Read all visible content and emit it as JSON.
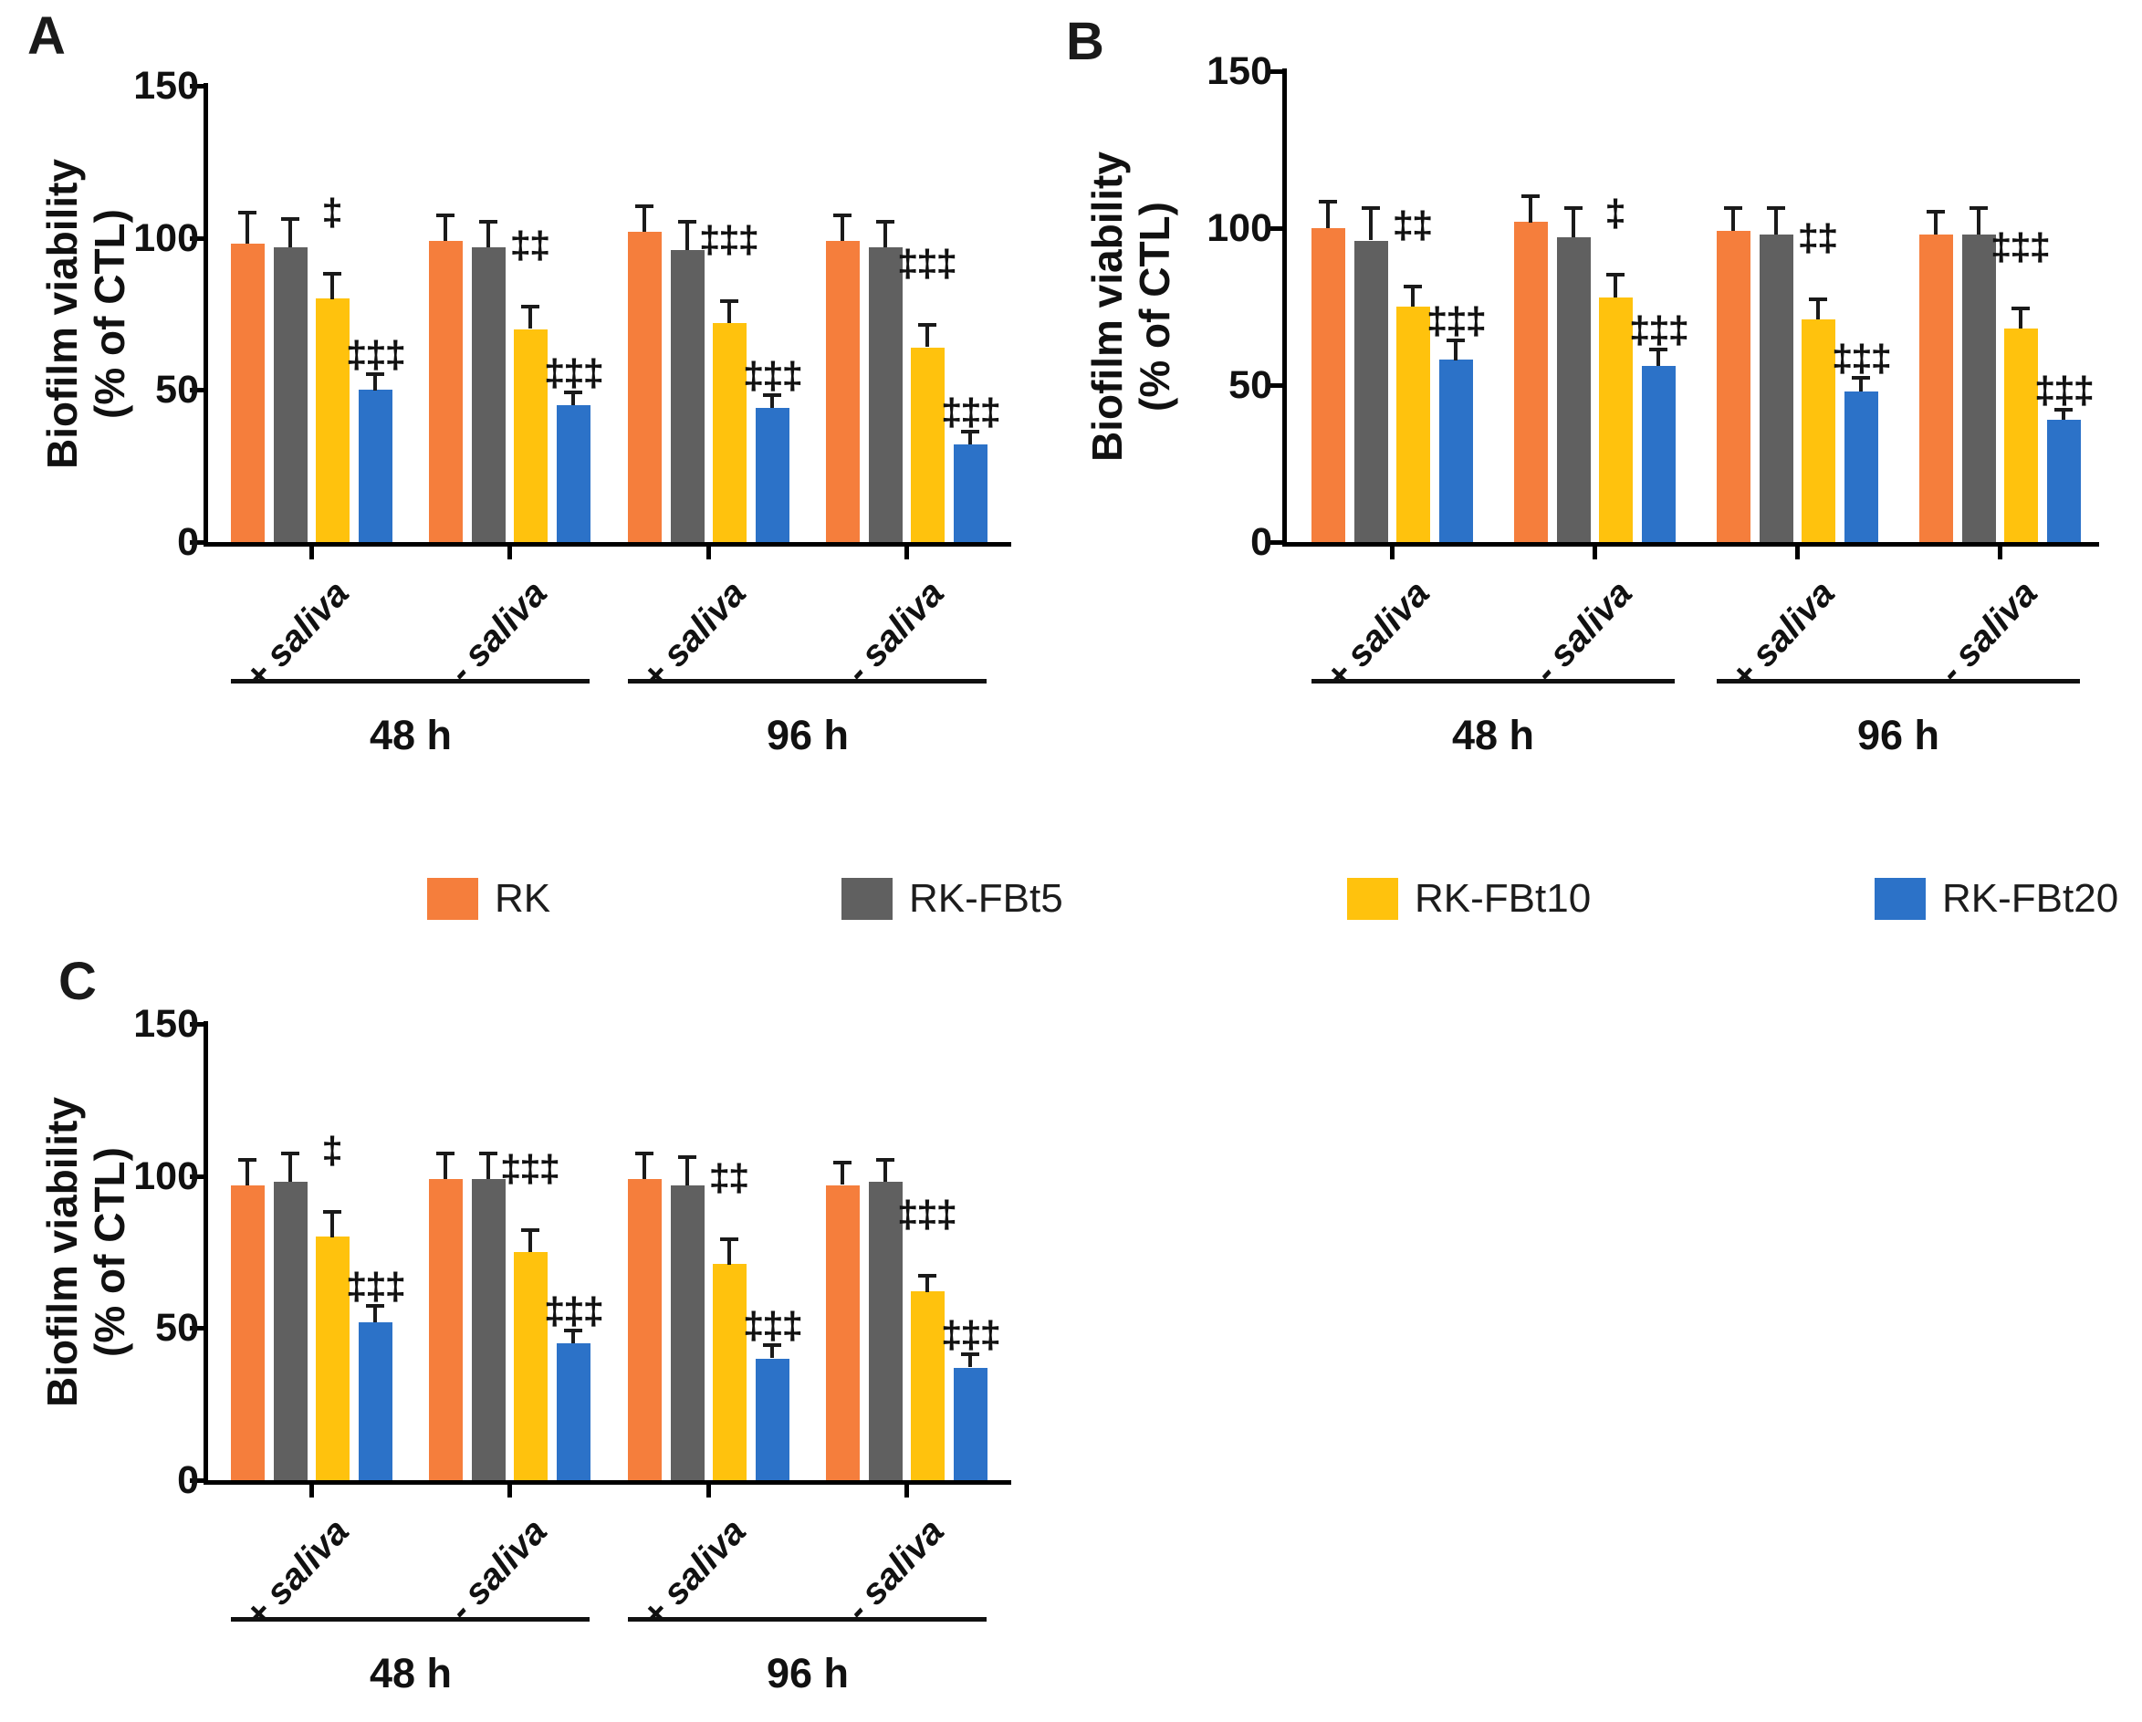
{
  "figure": {
    "panels": [
      {
        "letter": "A",
        "ylabel_line1": "Biofilm viability",
        "ylabel_line2": "(% of CTL)"
      },
      {
        "letter": "B",
        "ylabel_line1": "Biofilm viability",
        "ylabel_line2": "(% of CTL)"
      },
      {
        "letter": "C",
        "ylabel_line1": "Biofilm viability",
        "ylabel_line2": "(% of CTL)"
      }
    ],
    "legend": {
      "items": [
        {
          "label": "RK",
          "color": "#F57E3C"
        },
        {
          "label": "RK-FBt5",
          "color": "#606060"
        },
        {
          "label": "RK-FBt10",
          "color": "#FFC20D"
        },
        {
          "label": "RK-FBt20",
          "color": "#2C72C8"
        }
      ]
    }
  },
  "chart_data": [
    {
      "type": "bar",
      "panel": "A",
      "title": "",
      "xlabel": "",
      "ylabel": "Biofilm viability (% of CTL)",
      "ylim": [
        0,
        150
      ],
      "yticks": [
        0,
        50,
        100,
        150
      ],
      "grid": false,
      "legend_position": "shared-middle",
      "series": [
        "RK",
        "RK-FBt5",
        "RK-FBt10",
        "RK-FBt20"
      ],
      "series_colors": [
        "#F57E3C",
        "#606060",
        "#FFC20D",
        "#2C72C8"
      ],
      "groups": [
        {
          "saliva": "+ saliva",
          "time": "48 h",
          "values": [
            98,
            97,
            80,
            50
          ],
          "errors": [
            10,
            9,
            8,
            5
          ],
          "sig_above": "‡",
          "sig_side": "‡‡‡"
        },
        {
          "saliva": "- saliva",
          "time": "48 h",
          "values": [
            99,
            97,
            70,
            45
          ],
          "errors": [
            8,
            8,
            7,
            4
          ],
          "sig_above": "‡‡",
          "sig_side": "‡‡‡"
        },
        {
          "saliva": "+ saliva",
          "time": "96 h",
          "values": [
            102,
            96,
            72,
            44
          ],
          "errors": [
            8,
            9,
            7,
            4
          ],
          "sig_above": "‡‡‡",
          "sig_side": "‡‡‡"
        },
        {
          "saliva": "- saliva",
          "time": "96 h",
          "values": [
            99,
            97,
            64,
            32
          ],
          "errors": [
            8,
            8,
            7,
            4
          ],
          "sig_above": "‡‡‡",
          "sig_side": "‡‡‡"
        }
      ],
      "time_brackets": [
        {
          "label": "48 h",
          "group_indexes": [
            0,
            1
          ]
        },
        {
          "label": "96 h",
          "group_indexes": [
            2,
            3
          ]
        }
      ]
    },
    {
      "type": "bar",
      "panel": "B",
      "title": "",
      "xlabel": "",
      "ylabel": "Biofilm viability (% of CTL)",
      "ylim": [
        0,
        150
      ],
      "yticks": [
        0,
        50,
        100,
        150
      ],
      "grid": false,
      "legend_position": "shared-middle",
      "series": [
        "RK",
        "RK-FBt5",
        "RK-FBt10",
        "RK-FBt20"
      ],
      "series_colors": [
        "#F57E3C",
        "#606060",
        "#FFC20D",
        "#2C72C8"
      ],
      "groups": [
        {
          "saliva": "+ saliva",
          "time": "48 h",
          "values": [
            100,
            96,
            75,
            58
          ],
          "errors": [
            8,
            10,
            6,
            6
          ],
          "sig_above": "‡‡",
          "sig_side": "‡‡‡"
        },
        {
          "saliva": "- saliva",
          "time": "48 h",
          "values": [
            102,
            97,
            78,
            56
          ],
          "errors": [
            8,
            9,
            7,
            5
          ],
          "sig_above": "‡",
          "sig_side": "‡‡‡"
        },
        {
          "saliva": "+ saliva",
          "time": "96 h",
          "values": [
            99,
            98,
            71,
            48
          ],
          "errors": [
            7,
            8,
            6,
            4
          ],
          "sig_above": "‡‡",
          "sig_side": "‡‡‡"
        },
        {
          "saliva": "- saliva",
          "time": "96 h",
          "values": [
            98,
            98,
            68,
            39
          ],
          "errors": [
            7,
            8,
            6,
            3
          ],
          "sig_above": "‡‡‡",
          "sig_side": "‡‡‡"
        }
      ],
      "time_brackets": [
        {
          "label": "48 h",
          "group_indexes": [
            0,
            1
          ]
        },
        {
          "label": "96 h",
          "group_indexes": [
            2,
            3
          ]
        }
      ]
    },
    {
      "type": "bar",
      "panel": "C",
      "title": "",
      "xlabel": "",
      "ylabel": "Biofilm viability (% of CTL)",
      "ylim": [
        0,
        150
      ],
      "yticks": [
        0,
        50,
        100,
        150
      ],
      "grid": false,
      "legend_position": "shared-middle",
      "series": [
        "RK",
        "RK-FBt5",
        "RK-FBt10",
        "RK-FBt20"
      ],
      "series_colors": [
        "#F57E3C",
        "#606060",
        "#FFC20D",
        "#2C72C8"
      ],
      "groups": [
        {
          "saliva": "+ saliva",
          "time": "48 h",
          "values": [
            97,
            98,
            80,
            52
          ],
          "errors": [
            8,
            9,
            8,
            5
          ],
          "sig_above": "‡",
          "sig_side": "‡‡‡"
        },
        {
          "saliva": "- saliva",
          "time": "48 h",
          "values": [
            99,
            99,
            75,
            45
          ],
          "errors": [
            8,
            8,
            7,
            4
          ],
          "sig_above": "‡‡‡",
          "sig_side": "‡‡‡"
        },
        {
          "saliva": "+ saliva",
          "time": "96 h",
          "values": [
            99,
            97,
            71,
            40
          ],
          "errors": [
            8,
            9,
            8,
            4
          ],
          "sig_above": "‡‡",
          "sig_side": "‡‡‡"
        },
        {
          "saliva": "- saliva",
          "time": "96 h",
          "values": [
            97,
            98,
            62,
            37
          ],
          "errors": [
            7,
            7,
            5,
            4
          ],
          "sig_above": "‡‡‡",
          "sig_side": "‡‡‡"
        }
      ],
      "time_brackets": [
        {
          "label": "48 h",
          "group_indexes": [
            0,
            1
          ]
        },
        {
          "label": "96 h",
          "group_indexes": [
            2,
            3
          ]
        }
      ]
    }
  ]
}
